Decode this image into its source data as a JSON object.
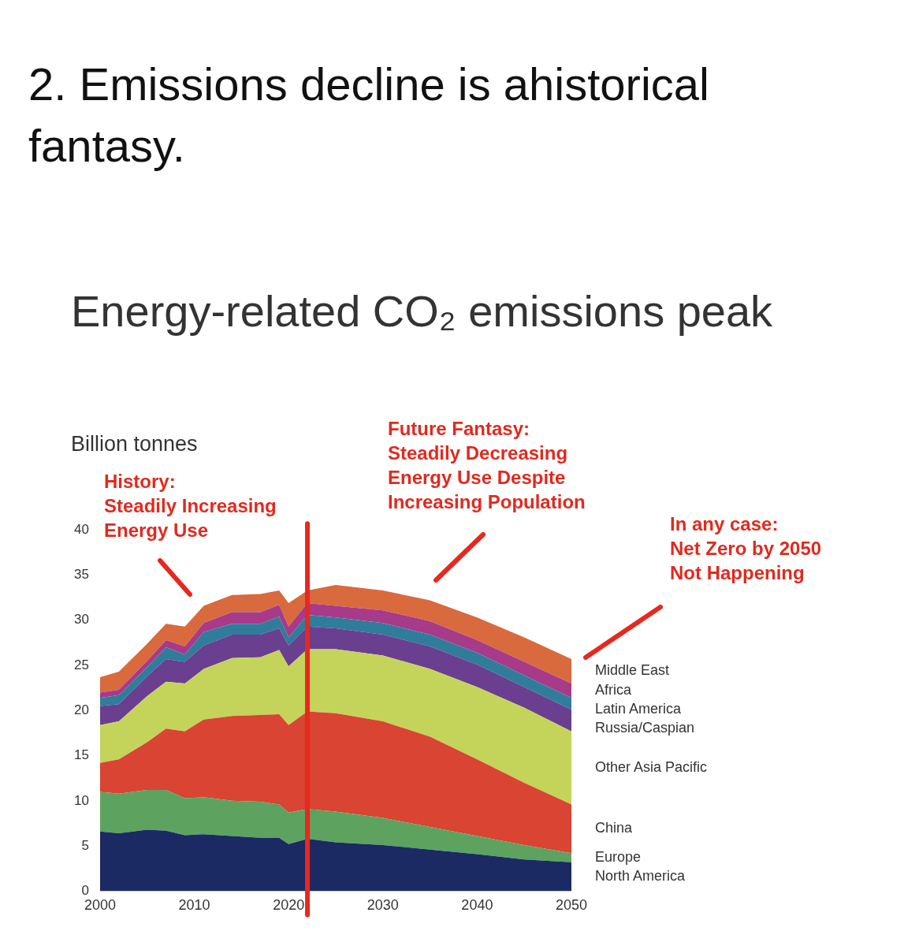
{
  "chart_data": {
    "type": "area",
    "title": "2. Emissions decline is ahistorical fantasy.",
    "subtitle": "Energy-related CO₂ emissions peak",
    "ylabel": "Billion tonnes",
    "annotations": [
      "History:\nSteadily Increasing\nEnergy Use",
      "Future Fantasy:\nSteadily Decreasing\nEnergy Use Despite\nIncreasing Population",
      "In any case:\nNet Zero by 2050\nNot Happening"
    ],
    "x": [
      2000,
      2002,
      2005,
      2007,
      2009,
      2011,
      2014,
      2017,
      2019,
      2020,
      2022,
      2025,
      2030,
      2035,
      2040,
      2045,
      2050
    ],
    "stacked": true,
    "grid": false,
    "xlim": [
      2000,
      2050
    ],
    "xticks": [
      2000,
      2010,
      2020,
      2030,
      2040,
      2050
    ],
    "ylim": [
      0,
      40
    ],
    "yticks": [
      0,
      5,
      10,
      15,
      20,
      25,
      30,
      35,
      40
    ],
    "ref_lines": [
      {
        "axis": "x",
        "value": 2022,
        "color": "#e8281e"
      }
    ],
    "series": [
      {
        "name": "North America",
        "color": "#1b2a63",
        "values": [
          6.6,
          6.4,
          6.8,
          6.7,
          6.2,
          6.3,
          6.1,
          5.9,
          5.9,
          5.2,
          5.8,
          5.4,
          5.1,
          4.6,
          4.1,
          3.5,
          3.2
        ]
      },
      {
        "name": "Europe",
        "color": "#5da35f",
        "values": [
          4.4,
          4.4,
          4.4,
          4.5,
          4.1,
          4.1,
          3.9,
          4.0,
          3.7,
          3.5,
          3.3,
          3.4,
          3.0,
          2.5,
          2.0,
          1.6,
          1.0
        ]
      },
      {
        "name": "China",
        "color": "#d94433",
        "values": [
          3.2,
          3.8,
          5.3,
          6.8,
          7.4,
          8.6,
          9.4,
          9.6,
          10.0,
          9.7,
          10.8,
          10.9,
          10.7,
          10.0,
          8.5,
          6.9,
          5.4
        ]
      },
      {
        "name": "Other Asia Pacific",
        "color": "#c4d45a",
        "values": [
          4.2,
          4.2,
          5.1,
          5.2,
          5.3,
          5.6,
          6.4,
          6.4,
          7.1,
          6.5,
          6.9,
          7.1,
          7.3,
          7.5,
          8.0,
          8.3,
          8.1
        ]
      },
      {
        "name": "Russia/Caspian",
        "color": "#6b3f8f",
        "values": [
          2.1,
          1.9,
          2.2,
          2.5,
          2.4,
          2.6,
          2.6,
          2.5,
          2.4,
          2.3,
          2.5,
          2.3,
          2.3,
          2.5,
          2.5,
          2.3,
          2.4
        ]
      },
      {
        "name": "Latin America",
        "color": "#2f7d9a",
        "values": [
          0.9,
          1.0,
          1.0,
          1.3,
          0.8,
          1.5,
          1.2,
          1.2,
          1.3,
          0.9,
          1.3,
          1.2,
          1.3,
          1.3,
          1.3,
          1.3,
          1.3
        ]
      },
      {
        "name": "Africa",
        "color": "#a83a8a",
        "values": [
          0.6,
          0.6,
          0.7,
          0.8,
          0.9,
          1.0,
          1.3,
          1.3,
          1.3,
          1.2,
          1.3,
          1.3,
          1.4,
          1.5,
          1.4,
          1.5,
          1.6
        ]
      },
      {
        "name": "Middle East",
        "color": "#d86a3e",
        "values": [
          1.7,
          2.0,
          1.9,
          1.8,
          2.2,
          1.9,
          1.9,
          2.0,
          1.6,
          2.6,
          1.4,
          2.3,
          2.2,
          2.3,
          2.5,
          2.7,
          2.7
        ]
      }
    ]
  }
}
